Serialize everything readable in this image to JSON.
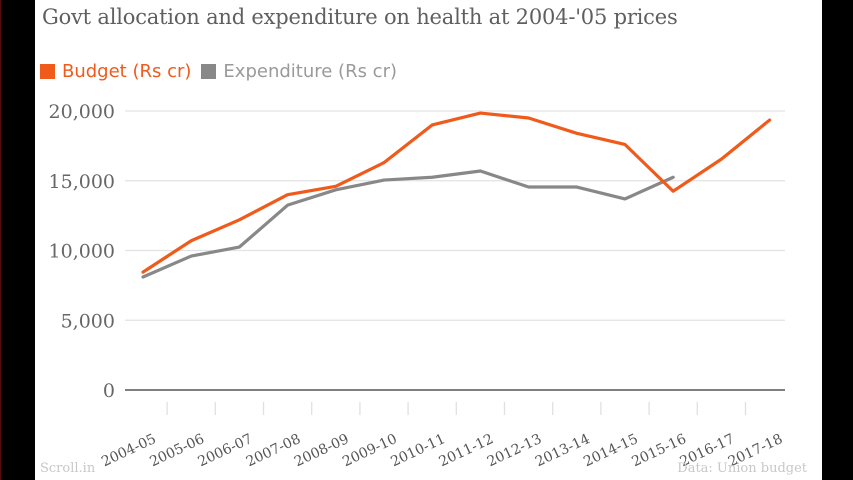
{
  "chart_data": {
    "type": "line",
    "title": "Govt allocation and expenditure on health at 2004-'05 prices",
    "xlabel": "",
    "ylabel": "",
    "categories": [
      "2004-05",
      "2005-06",
      "2006-07",
      "2007-08",
      "2008-09",
      "2009-10",
      "2010-11",
      "2011-12",
      "2012-13",
      "2013-14",
      "2014-15",
      "2015-16",
      "2016-17",
      "2017-18"
    ],
    "series": [
      {
        "name": "Budget (Rs cr)",
        "color": "#f05a1a",
        "values": [
          8450,
          10700,
          12200,
          14000,
          14600,
          16300,
          19000,
          19850,
          19500,
          18400,
          17600,
          14250,
          16550,
          19350
        ]
      },
      {
        "name": "Expenditure (Rs cr)",
        "color": "#888888",
        "values": [
          8100,
          9600,
          10250,
          13250,
          14350,
          15050,
          15250,
          15700,
          14550,
          14550,
          13700,
          15250,
          null,
          null
        ]
      }
    ],
    "ylim": [
      0,
      20000
    ],
    "yticks": [
      0,
      5000,
      10000,
      15000,
      20000
    ],
    "ytick_labels": [
      "0",
      "5,000",
      "10,000",
      "15,000",
      "20,000"
    ],
    "grid": true,
    "legend_position": "top-left"
  },
  "footer": {
    "left": "Scroll.in",
    "right": "Data: Union budget"
  }
}
